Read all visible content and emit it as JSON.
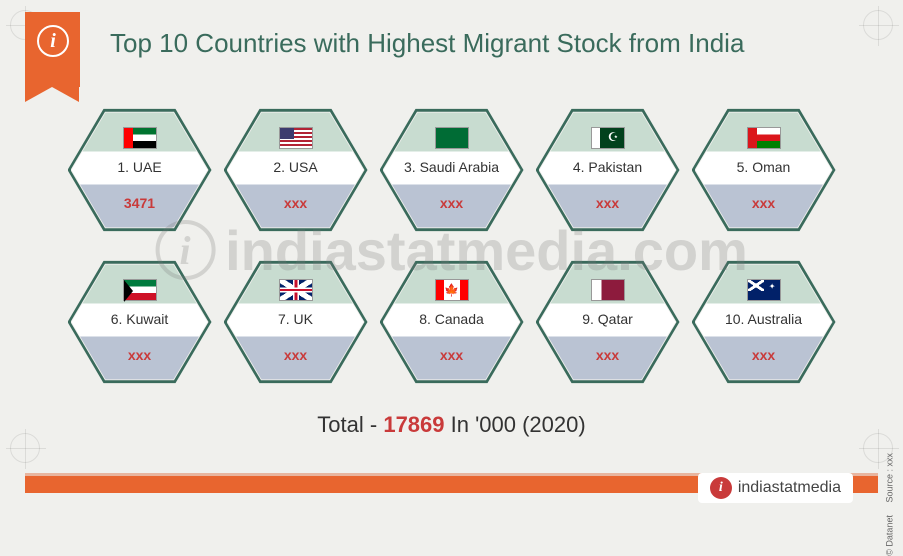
{
  "title": "Top 10 Countries with Highest Migrant Stock from India",
  "colors": {
    "accent_orange": "#e8652f",
    "accent_green": "#3a6b5c",
    "value_red": "#c93a3a",
    "hex_top": "#c8dcd0",
    "hex_mid": "#ffffff",
    "hex_bottom": "#bac3d3",
    "background": "#f0f0ed"
  },
  "countries": [
    {
      "rank": 1,
      "name": "UAE",
      "label": "1. UAE",
      "value": "3471",
      "flag_class": "flag-uae"
    },
    {
      "rank": 2,
      "name": "USA",
      "label": "2. USA",
      "value": "xxx",
      "flag_class": "flag-usa"
    },
    {
      "rank": 3,
      "name": "Saudi Arabia",
      "label": "3. Saudi Arabia",
      "value": "xxx",
      "flag_class": "flag-saudi"
    },
    {
      "rank": 4,
      "name": "Pakistan",
      "label": "4. Pakistan",
      "value": "xxx",
      "flag_class": "flag-pak"
    },
    {
      "rank": 5,
      "name": "Oman",
      "label": "5. Oman",
      "value": "xxx",
      "flag_class": "flag-oman"
    },
    {
      "rank": 6,
      "name": "Kuwait",
      "label": "6. Kuwait",
      "value": "xxx",
      "flag_class": "flag-kuwait"
    },
    {
      "rank": 7,
      "name": "UK",
      "label": "7. UK",
      "value": "xxx",
      "flag_class": "flag-uk"
    },
    {
      "rank": 8,
      "name": "Canada",
      "label": "8. Canada",
      "value": "xxx",
      "flag_class": "flag-canada"
    },
    {
      "rank": 9,
      "name": "Qatar",
      "label": "9. Qatar",
      "value": "xxx",
      "flag_class": "flag-qatar"
    },
    {
      "rank": 10,
      "name": "Australia",
      "label": "10. Australia",
      "value": "xxx",
      "flag_class": "flag-aus"
    }
  ],
  "total": {
    "prefix": "Total  -  ",
    "value": "17869",
    "suffix": "  In '000 (2020)"
  },
  "footer": {
    "brand": "indiastatmedia",
    "copyright": "© Datanet",
    "source": "Source : xxx"
  },
  "watermark": "indiastatmedia.com"
}
